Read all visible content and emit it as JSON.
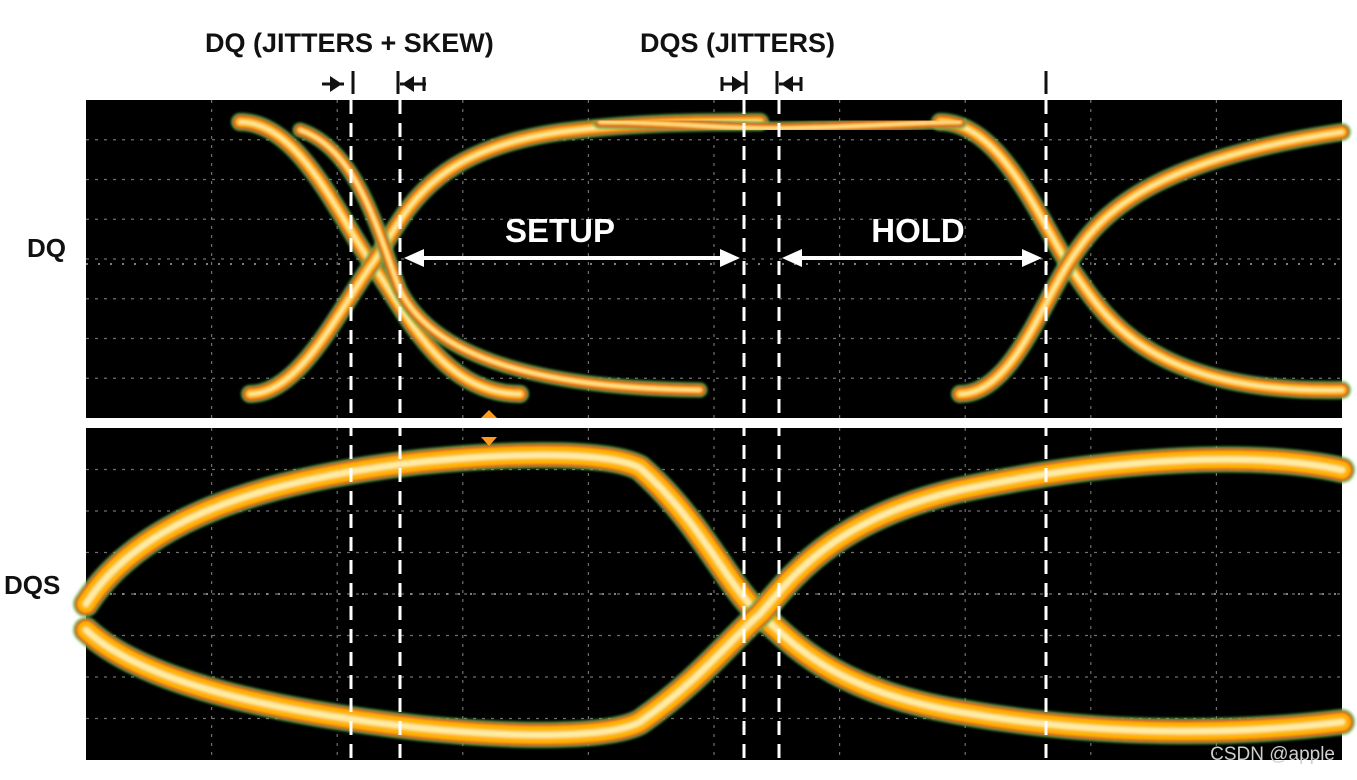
{
  "headers": {
    "dq": "DQ (JITTERS + SKEW)",
    "dqs": "DQS (JITTERS)"
  },
  "signal_labels": {
    "dq": "DQ",
    "dqs": "DQS"
  },
  "annotations": {
    "setup": "SETUP",
    "hold": "HOLD"
  },
  "watermark": "CSDN @apple",
  "colors": {
    "background": "#000000",
    "trace_core": "#fff6c0",
    "trace_mid": "#ffb400",
    "trace_outer": "#d8261b",
    "trace_edge": "#4fb84a",
    "grid": "#8c8c8c",
    "marker": "#ffffff"
  }
}
